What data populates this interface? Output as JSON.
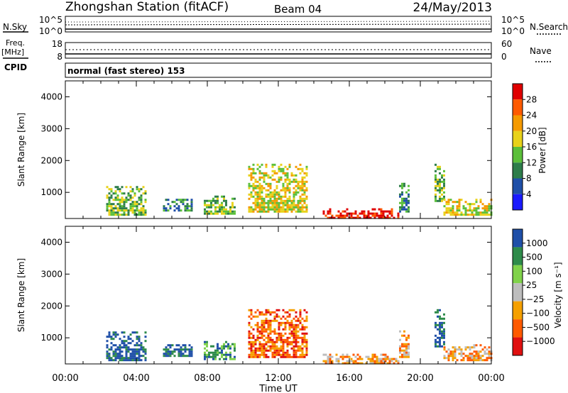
{
  "header": {
    "station": "Zhongshan Station (fitACF)",
    "beam": "Beam 04",
    "date": "24/May/2013"
  },
  "status_panels": {
    "nsky_label": "N.Sky",
    "nsearch_label": "N.Search",
    "freq_label_top": "Freq.",
    "freq_label_unit": "[MHz]",
    "nave_label": "Nave",
    "cpid_label": "CPID",
    "noise_top_left": "10^5",
    "noise_bottom_left": "10^0",
    "noise_top_right": "10^5",
    "noise_bottom_right": "10^0",
    "freq_top": "18",
    "freq_bottom": "8",
    "nave_top": "60",
    "nave_bottom": "0",
    "cpid_text": "normal (fast stereo) 153"
  },
  "colors": {
    "power": [
      "#1a1aff",
      "#1f4fa8",
      "#2d7d4a",
      "#5bbf3a",
      "#e8d21a",
      "#f59a00",
      "#ff5a00",
      "#e00000"
    ],
    "velocity": [
      "#e01010",
      "#ff5a00",
      "#f5a000",
      "#bdbdbd",
      "#80d24a",
      "#2e8b4a",
      "#1f4fa8"
    ]
  },
  "chart_data": [
    {
      "type": "heatmap",
      "name": "power",
      "ylabel": "Slant Range [km]",
      "xlabel": "",
      "ylim": [
        180,
        4500
      ],
      "yticks": [
        "1000",
        "2000",
        "3000",
        "4000"
      ],
      "xticks": [
        "00:00",
        "04:00",
        "08:00",
        "12:00",
        "16:00",
        "20:00",
        "00:00"
      ],
      "colorbar": {
        "label": "Power [dB]",
        "ticks": [
          "4",
          "8",
          "12",
          "16",
          "20",
          "24",
          "28"
        ]
      },
      "echo_regions": [
        {
          "t0": 2.3,
          "t1": 4.5,
          "r0": 300,
          "r1": 1200,
          "level": 3
        },
        {
          "t0": 5.5,
          "t1": 7.1,
          "r0": 400,
          "r1": 800,
          "level": 2
        },
        {
          "t0": 7.8,
          "t1": 9.5,
          "r0": 350,
          "r1": 900,
          "level": 3
        },
        {
          "t0": 10.3,
          "t1": 13.6,
          "r0": 400,
          "r1": 1900,
          "level": 4
        },
        {
          "t0": 14.5,
          "t1": 18.8,
          "r0": 200,
          "r1": 500,
          "level": 7
        },
        {
          "t0": 18.8,
          "t1": 19.3,
          "r0": 400,
          "r1": 1300,
          "level": 2
        },
        {
          "t0": 20.8,
          "t1": 21.3,
          "r0": 700,
          "r1": 1900,
          "level": 3
        },
        {
          "t0": 21.3,
          "t1": 24,
          "r0": 300,
          "r1": 800,
          "level": 4
        }
      ]
    },
    {
      "type": "heatmap",
      "name": "velocity",
      "ylabel": "Slant Range [km]",
      "xlabel": "Time UT",
      "ylim": [
        180,
        4500
      ],
      "yticks": [
        "1000",
        "2000",
        "3000",
        "4000"
      ],
      "xticks": [
        "00:00",
        "04:00",
        "08:00",
        "12:00",
        "16:00",
        "20:00",
        "00:00"
      ],
      "colorbar": {
        "label": "Velocity [m s⁻¹]",
        "ticks": [
          "1000",
          "500",
          "100",
          "25",
          "−25",
          "−100",
          "−500",
          "−1000"
        ]
      },
      "echo_regions": [
        {
          "t0": 2.3,
          "t1": 4.5,
          "r0": 300,
          "r1": 1200,
          "level": 6
        },
        {
          "t0": 5.5,
          "t1": 7.1,
          "r0": 400,
          "r1": 800,
          "level": 6
        },
        {
          "t0": 7.8,
          "t1": 9.5,
          "r0": 350,
          "r1": 900,
          "level": 5
        },
        {
          "t0": 10.3,
          "t1": 13.6,
          "r0": 400,
          "r1": 1900,
          "level": 1
        },
        {
          "t0": 14.5,
          "t1": 18.8,
          "r0": 200,
          "r1": 500,
          "level": 2
        },
        {
          "t0": 18.8,
          "t1": 19.3,
          "r0": 400,
          "r1": 1300,
          "level": 2
        },
        {
          "t0": 20.8,
          "t1": 21.3,
          "r0": 700,
          "r1": 1900,
          "level": 6
        },
        {
          "t0": 21.3,
          "t1": 24,
          "r0": 300,
          "r1": 800,
          "level": 2
        }
      ]
    }
  ]
}
